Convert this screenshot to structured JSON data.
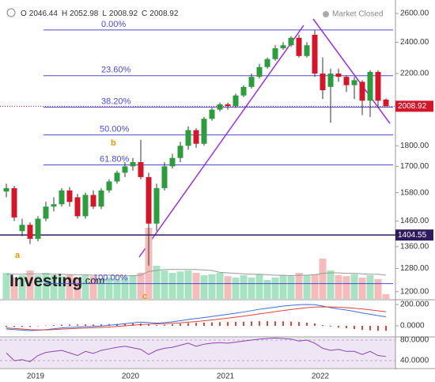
{
  "chart_data": {
    "type": "candlestick",
    "header": {
      "labels": [
        "O",
        "H",
        "L",
        "C"
      ]
    },
    "status": "Market Closed",
    "watermark": [
      "Investing",
      ".com"
    ],
    "categories": [
      null,
      null,
      null,
      null,
      "2019",
      null,
      null,
      null,
      null,
      null,
      null,
      null,
      null,
      null,
      null,
      null,
      "2020",
      null,
      null,
      null,
      null,
      null,
      null,
      null,
      null,
      null,
      null,
      null,
      "2021",
      null,
      null,
      null,
      null,
      null,
      null,
      null,
      null,
      null,
      null,
      null,
      "2022",
      null,
      null,
      null,
      null,
      null,
      null,
      null,
      null
    ],
    "open": [
      1585,
      1600,
      1420,
      1445,
      1390,
      1470,
      1520,
      1530,
      1590,
      1560,
      1480,
      1570,
      1520,
      1590,
      1630,
      1670,
      1700,
      1720,
      1650,
      1450,
      1600,
      1700,
      1740,
      1800,
      1880,
      1810,
      1940,
      1990,
      2020,
      2010,
      2070,
      2120,
      2180,
      2240,
      2290,
      2360,
      2380,
      2430,
      2310,
      2450,
      2200,
      2120,
      2200,
      2180,
      2130,
      2150,
      2040,
      2210,
      2046.44
    ],
    "high": [
      1620,
      1610,
      1470,
      1455,
      1480,
      1540,
      1560,
      1600,
      1605,
      1575,
      1580,
      1590,
      1600,
      1640,
      1680,
      1720,
      1740,
      1830,
      1670,
      1620,
      1720,
      1760,
      1820,
      1900,
      1890,
      1950,
      2000,
      2030,
      2030,
      2080,
      2130,
      2200,
      2260,
      2300,
      2380,
      2400,
      2440,
      2450,
      2400,
      2480,
      2300,
      2230,
      2230,
      2190,
      2180,
      2160,
      2220,
      2220,
      2052.98
    ],
    "low": [
      1560,
      1460,
      1400,
      1370,
      1380,
      1460,
      1500,
      1520,
      1520,
      1470,
      1470,
      1510,
      1510,
      1580,
      1620,
      1650,
      1680,
      1640,
      1290,
      1420,
      1590,
      1690,
      1720,
      1780,
      1790,
      1800,
      1930,
      1980,
      1990,
      2000,
      2060,
      2110,
      2170,
      2230,
      2280,
      2350,
      2370,
      2300,
      2300,
      2180,
      2050,
      1920,
      2150,
      2090,
      2050,
      1960,
      1950,
      2000,
      2008.92
    ],
    "close": [
      1600,
      1475,
      1445,
      1390,
      1470,
      1520,
      1530,
      1590,
      1540,
      1480,
      1570,
      1520,
      1590,
      1630,
      1670,
      1700,
      1720,
      1650,
      1450,
      1600,
      1700,
      1740,
      1800,
      1880,
      1810,
      1940,
      1990,
      2020,
      2010,
      2070,
      2120,
      2180,
      2240,
      2290,
      2360,
      2380,
      2430,
      2310,
      2380,
      2200,
      2100,
      2200,
      2180,
      2130,
      2160,
      2040,
      2210,
      2040,
      2008.92
    ],
    "up_color": "#2f9b3f",
    "down_color": "#d3172a",
    "log_scale": true,
    "ylim": [
      1176,
      2687
    ],
    "yticks": [
      {
        "value": 2600,
        "label": "2600.00"
      },
      {
        "value": 2400,
        "label": "2400.00"
      },
      {
        "value": 2200,
        "label": "2200.00"
      },
      {
        "value": 1800,
        "label": "1800.00"
      },
      {
        "value": 1700,
        "label": "1700.00"
      },
      {
        "value": 1580,
        "label": "1580.00"
      },
      {
        "value": 1460,
        "label": "1460.00"
      },
      {
        "value": 1360,
        "label": "1360.00"
      },
      {
        "value": 1280,
        "label": "1280.00"
      },
      {
        "value": 1200,
        "label": "1200.00"
      }
    ],
    "fib_levels": [
      {
        "label": "0.00%",
        "price": 2483
      },
      {
        "label": "23.60%",
        "price": 2187
      },
      {
        "label": "38.20%",
        "price": 2003
      },
      {
        "label": "50.00%",
        "price": 1855
      },
      {
        "label": "61.80%",
        "price": 1707
      },
      {
        "label": "100.00%",
        "price": 1227
      }
    ],
    "hline": {
      "value": 1404.55,
      "color": "#2d1b5e"
    },
    "annotations": [
      "a",
      "b",
      "c"
    ],
    "volume": [
      55,
      45,
      50,
      60,
      50,
      55,
      50,
      48,
      52,
      45,
      50,
      48,
      40,
      45,
      42,
      45,
      50,
      55,
      150,
      70,
      60,
      55,
      58,
      60,
      55,
      50,
      52,
      55,
      48,
      45,
      50,
      45,
      52,
      40,
      45,
      50,
      48,
      55,
      50,
      52,
      85,
      60,
      50,
      48,
      52,
      45,
      50,
      42,
      10
    ],
    "volume_ma": [
      52,
      52,
      52,
      53,
      53,
      53,
      52,
      52,
      51,
      51,
      51,
      50,
      50,
      50,
      49,
      49,
      49,
      50,
      58,
      60,
      62,
      62,
      62,
      62,
      62,
      61,
      60,
      56,
      55,
      54,
      53,
      52,
      52,
      51,
      50,
      50,
      49,
      50,
      50,
      51,
      54,
      55,
      55,
      54,
      54,
      53,
      52,
      52,
      50
    ],
    "macd": {
      "ylim": [
        -104,
        237
      ],
      "yticks": [
        {
          "value": 200,
          "label": "200.000"
        },
        {
          "value": 0,
          "label": "0.0000"
        }
      ],
      "macd": [
        -30,
        -35,
        -40,
        -45,
        -42,
        -35,
        -28,
        -20,
        -15,
        -12,
        -8,
        -6,
        -2,
        5,
        12,
        20,
        28,
        35,
        30,
        25,
        30,
        38,
        48,
        60,
        68,
        78,
        88,
        98,
        108,
        118,
        130,
        142,
        155,
        165,
        175,
        185,
        192,
        198,
        200,
        198,
        185,
        170,
        158,
        148,
        135,
        120,
        108,
        95,
        85
      ],
      "signal": [
        -20,
        -25,
        -30,
        -35,
        -38,
        -38,
        -35,
        -31,
        -27,
        -24,
        -21,
        -18,
        -15,
        -11,
        -6,
        0,
        6,
        12,
        16,
        18,
        20,
        24,
        28,
        34,
        40,
        47,
        55,
        63,
        72,
        81,
        91,
        101,
        112,
        122,
        133,
        143,
        153,
        162,
        170,
        176,
        178,
        177,
        175,
        170,
        165,
        158,
        150,
        141,
        132
      ],
      "hist": [
        -10,
        -10,
        -10,
        -10,
        -4,
        3,
        7,
        11,
        12,
        12,
        13,
        12,
        13,
        16,
        18,
        20,
        22,
        23,
        14,
        7,
        10,
        14,
        20,
        26,
        28,
        31,
        33,
        35,
        36,
        37,
        39,
        41,
        43,
        43,
        42,
        42,
        39,
        36,
        30,
        22,
        7,
        -7,
        -17,
        -22,
        -30,
        -38,
        -42,
        -46,
        -47
      ]
    },
    "rsi": {
      "ylim": [
        26.2,
        84.6
      ],
      "yticks": [
        {
          "value": 80,
          "label": "80.0000"
        },
        {
          "value": 40,
          "label": "40.0000"
        }
      ],
      "values": [
        55,
        40,
        42,
        38,
        50,
        56,
        58,
        60,
        55,
        50,
        58,
        54,
        60,
        63,
        66,
        68,
        65,
        62,
        52,
        60,
        64,
        66,
        70,
        74,
        68,
        72,
        74,
        75,
        74,
        76,
        78,
        80,
        82,
        83,
        84,
        83,
        82,
        78,
        80,
        74,
        64,
        60,
        62,
        58,
        58,
        52,
        58,
        50,
        48
      ]
    }
  }
}
